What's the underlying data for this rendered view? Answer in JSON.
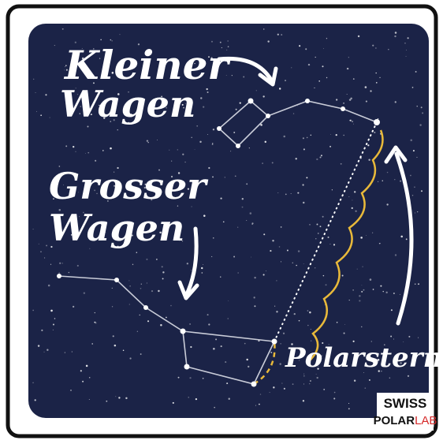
{
  "labels": {
    "kleiner_wagen": [
      "Kleiner",
      "Wagen"
    ],
    "grosser_wagen": [
      "Grosser",
      "Wagen"
    ],
    "polarstern": "Polarstern"
  },
  "logo": {
    "line1": "SWISS",
    "line2a": "POLAR",
    "line2b": "LAB"
  }
}
